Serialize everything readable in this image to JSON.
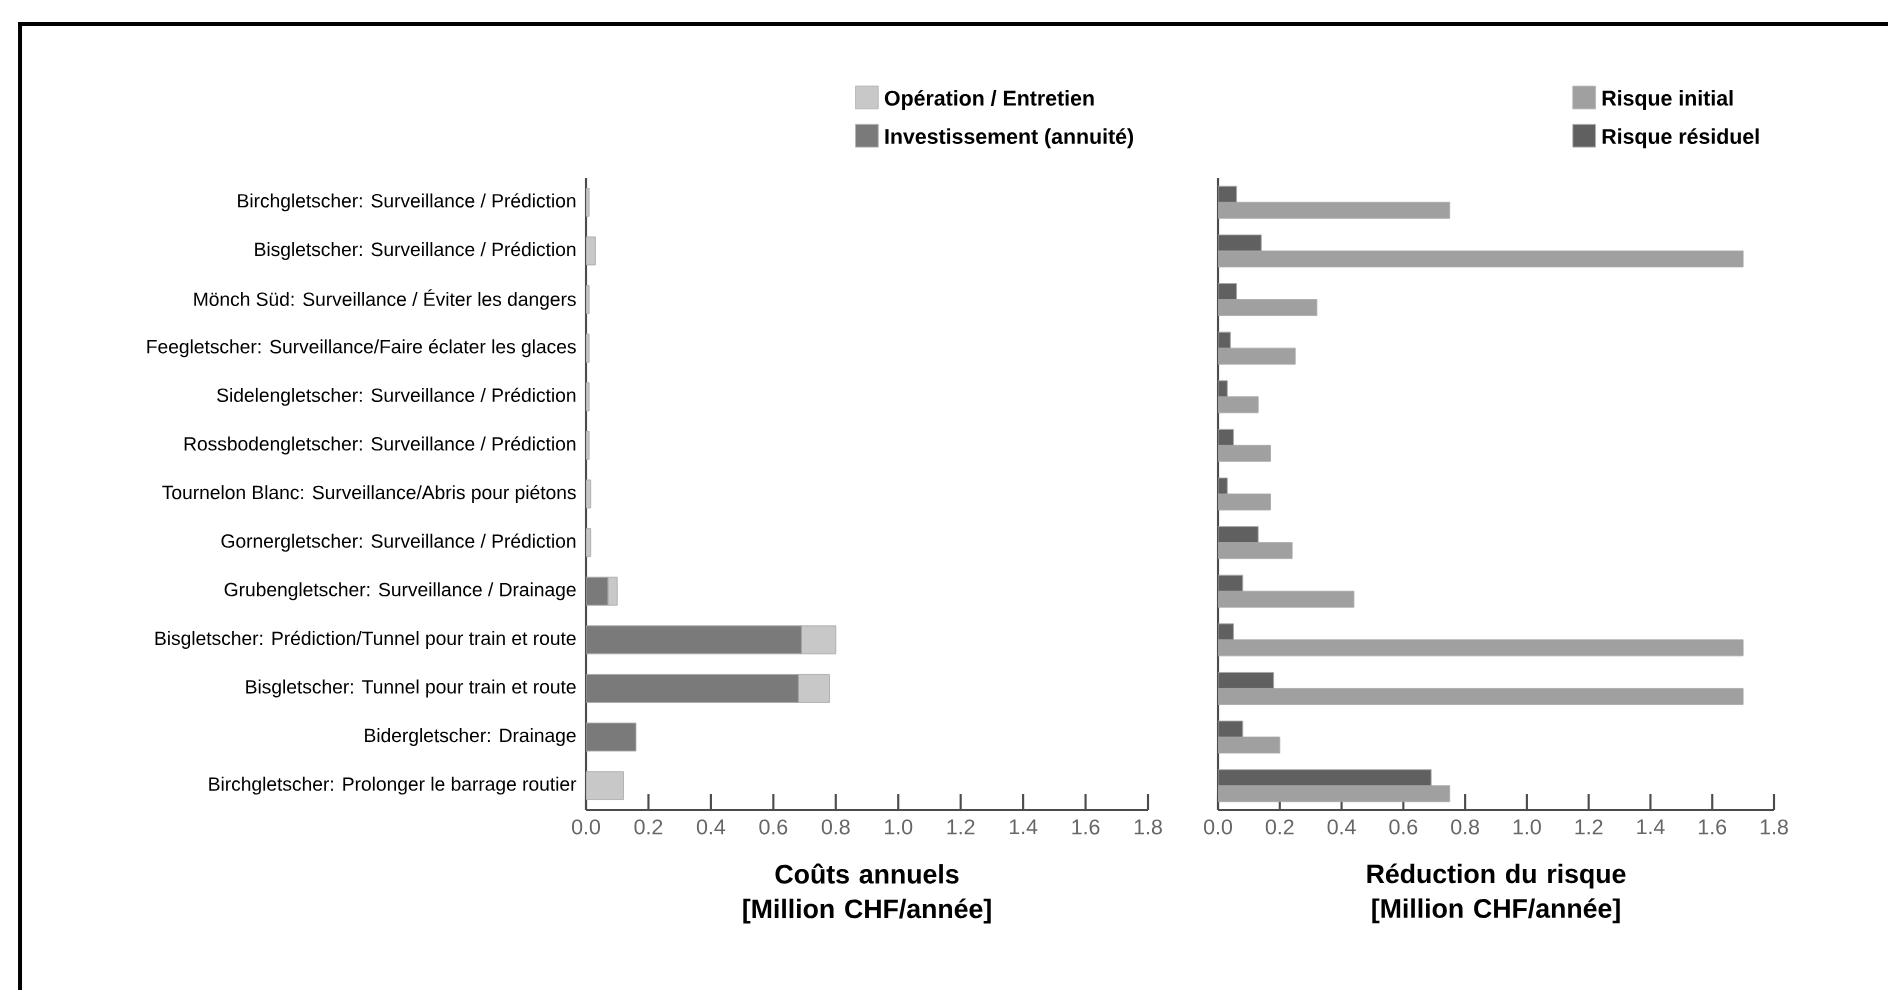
{
  "chart_data": [
    {
      "type": "bar",
      "orientation": "horizontal",
      "stacked": true,
      "xlabel": "Coûts annuels [Million CHF/année]",
      "categories": [
        "Birchgletscher: Surveillance / Prédiction",
        "Bisgletscher: Surveillance / Prédiction",
        "Mönch Süd: Surveillance / Éviter les dangers",
        "Feegletscher: Surveillance/Faire éclater les glaces",
        "Sidelengletscher: Surveillance / Prédiction",
        "Rossbodengletscher: Surveillance / Prédiction",
        "Tournelon Blanc: Surveillance/Abris pour piétons",
        "Gornergletscher: Surveillance / Prédiction",
        "Grubengletscher: Surveillance / Drainage",
        "Bisgletscher: Prédiction/Tunnel pour train et route",
        "Bisgletscher: Tunnel pour train et route",
        "Bidergletscher: Drainage",
        "Birchgletscher: Prolonger le barrage routier"
      ],
      "series": [
        {
          "name": "Investissement (annuité)",
          "color": "#7a7a7a",
          "values": [
            0,
            0,
            0,
            0,
            0,
            0,
            0,
            0,
            0.07,
            0.69,
            0.68,
            0.16,
            0
          ]
        },
        {
          "name": "Opération / Entretien",
          "color": "#c8c8c8",
          "values": [
            0.01,
            0.03,
            0.01,
            0.01,
            0.01,
            0.01,
            0.015,
            0.015,
            0.03,
            0.11,
            0.1,
            0,
            0.12
          ]
        }
      ],
      "xlim": [
        0,
        1.8
      ],
      "xticks": [
        {
          "value": 0,
          "label": "0.0"
        },
        {
          "value": 0.2,
          "label": "0.2"
        },
        {
          "value": 0.4,
          "label": "0.4"
        },
        {
          "value": 0.6,
          "label": "0.6"
        },
        {
          "value": 0.8,
          "label": "0.8"
        },
        {
          "value": 1.0,
          "label": "1.0"
        },
        {
          "value": 1.2,
          "label": "1.2"
        },
        {
          "value": 1.4,
          "label": "1.4"
        },
        {
          "value": 1.6,
          "label": "1.6"
        },
        {
          "value": 1.8,
          "label": "1.8"
        }
      ],
      "legend": "top right",
      "grid": false
    },
    {
      "type": "bar",
      "orientation": "horizontal",
      "xlabel": "Réduction du risque [Million CHF/année]",
      "categories": [
        null,
        null,
        null,
        null,
        null,
        null,
        null,
        null,
        null,
        null,
        null,
        null,
        null
      ],
      "series": [
        {
          "name": "Risque initial",
          "color": "#a0a0a0",
          "values": [
            0.75,
            1.7,
            0.32,
            0.25,
            0.13,
            0.17,
            0.17,
            0.24,
            0.44,
            1.7,
            1.7,
            0.2,
            0.75
          ]
        },
        {
          "name": "Risque résiduel",
          "color": "#606060",
          "values": [
            0.06,
            0.14,
            0.06,
            0.04,
            0.03,
            0.05,
            0.03,
            0.13,
            0.08,
            0.05,
            0.18,
            0.08,
            0.69
          ]
        }
      ],
      "xlim": [
        0,
        1.8
      ],
      "xticks": [
        {
          "value": 0,
          "label": "0.0"
        },
        {
          "value": 0.2,
          "label": "0.2"
        },
        {
          "value": 0.4,
          "label": "0.4"
        },
        {
          "value": 0.6,
          "label": "0.6"
        },
        {
          "value": 0.8,
          "label": "0.8"
        },
        {
          "value": 1.0,
          "label": "1.0"
        },
        {
          "value": 1.2,
          "label": "1.2"
        },
        {
          "value": 1.4,
          "label": "1.4"
        },
        {
          "value": 1.6,
          "label": "1.6"
        },
        {
          "value": 1.8,
          "label": "1.8"
        }
      ],
      "tick_labels": "x",
      "legend": "top right",
      "grid": false
    }
  ]
}
